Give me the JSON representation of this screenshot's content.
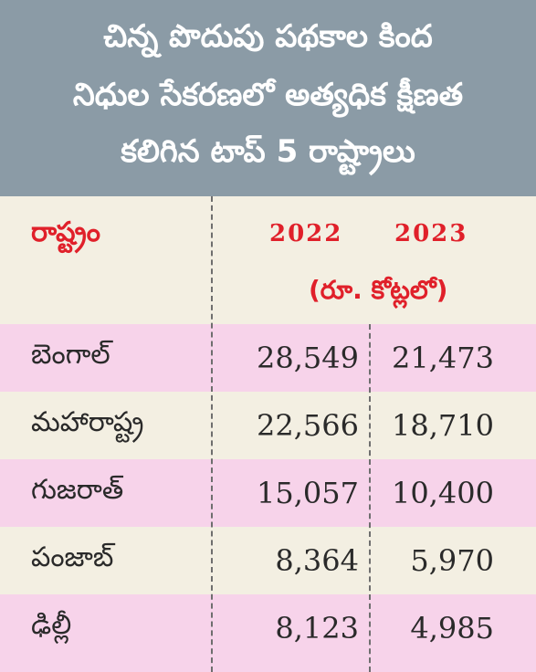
{
  "header": {
    "line1": "చిన్న పొదుపు పథకాల కింద",
    "line2": "నిధుల సేకరణలో  అత్యధిక క్షీణత",
    "line3": "కలిగిన టాప్ 5 రాష్ట్రాలు"
  },
  "columns": {
    "state": "రాష్ట్రం",
    "year1": "2022",
    "year2": "2023",
    "unit": "(రూ. కోట్లలో)"
  },
  "rows": [
    {
      "state": "బెంగాల్",
      "v2022": "28,549",
      "v2023": "21,473"
    },
    {
      "state": "మహారాష్ట్ర",
      "v2022": "22,566",
      "v2023": "18,710"
    },
    {
      "state": "గుజరాత్",
      "v2022": "15,057",
      "v2023": "10,400"
    },
    {
      "state": "పంజాబ్",
      "v2022": "8,364",
      "v2023": "5,970"
    },
    {
      "state": "ఢిల్లీ",
      "v2022": "8,123",
      "v2023": "4,985"
    }
  ],
  "colors": {
    "header_bg": "#8b9ba6",
    "accent_red": "#e0202a",
    "row_pink": "#f7d3ea",
    "row_cream": "#f3efe2"
  },
  "chart_data": {
    "type": "table",
    "title": "చిన్న పొదుపు పథకాల కింద నిధుల సేకరణలో  అత్యధిక క్షీణత కలిగిన టాప్ 5 రాష్ట్రాలు",
    "columns": [
      "రాష్ట్రం",
      "2022",
      "2023"
    ],
    "unit": "(రూ. కోట్లలో)",
    "categories": [
      "బెంగాల్",
      "మహారాష్ట్ర",
      "గుజరాత్",
      "పంజాబ్",
      "ఢిల్లీ"
    ],
    "series": [
      {
        "name": "2022",
        "values": [
          28549,
          22566,
          15057,
          8364,
          8123
        ]
      },
      {
        "name": "2023",
        "values": [
          21473,
          18710,
          10400,
          5970,
          4985
        ]
      }
    ]
  }
}
